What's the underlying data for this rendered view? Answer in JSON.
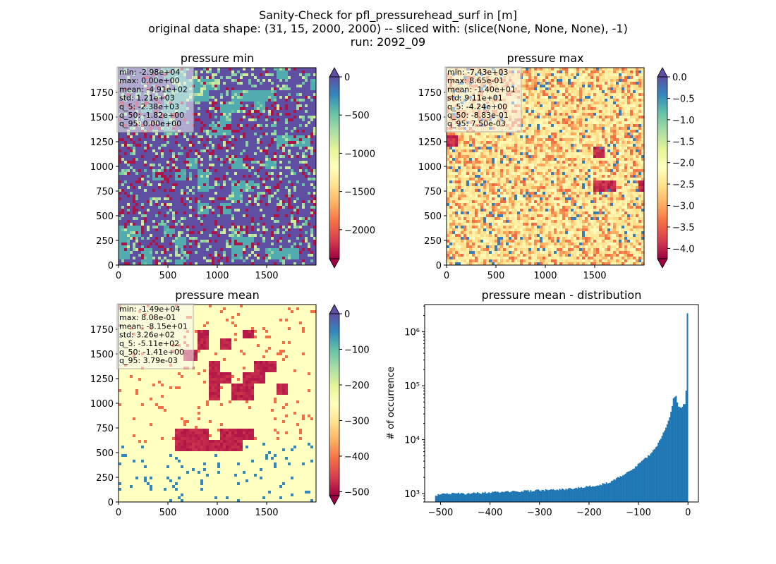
{
  "figure": {
    "title_lines": [
      "Sanity-Check for pfl_pressurehead_surf in [m]",
      "original data shape: (31, 15, 2000, 2000) -- sliced with: (slice(None, None, None), -1)",
      "run: 2092_09"
    ]
  },
  "chart_data": [
    {
      "type": "heatmap",
      "title": "pressure min",
      "x_ticks": [
        "0",
        "500",
        "1000",
        "1500"
      ],
      "y_ticks": [
        "0",
        "250",
        "500",
        "750",
        "1000",
        "1250",
        "1500",
        "1750"
      ],
      "xlim": [
        0,
        2000
      ],
      "ylim": [
        0,
        2000
      ],
      "colormap": "Spectral",
      "colorbar": {
        "ticks": [
          "0",
          "−500",
          "−1000",
          "−1500",
          "−2000"
        ],
        "tick_values": [
          0,
          -500,
          -1000,
          -1500,
          -2000
        ],
        "range": [
          -2380,
          0
        ],
        "extend": "both"
      },
      "stats": [
        "min: -2.98e+04",
        "max: 0.00e+00",
        "mean: -4.91e+02",
        "std: 1.21e+03",
        "q_5: -2.38e+03",
        "q_50: -1.82e+00",
        "q_95: 0.00e+00"
      ]
    },
    {
      "type": "heatmap",
      "title": "pressure max",
      "x_ticks": [
        "0",
        "500",
        "1000",
        "1500"
      ],
      "y_ticks": [
        "0",
        "250",
        "500",
        "750",
        "1000",
        "1250",
        "1500",
        "1750"
      ],
      "xlim": [
        0,
        2000
      ],
      "ylim": [
        0,
        2000
      ],
      "colormap": "Spectral",
      "colorbar": {
        "ticks": [
          "0.0",
          "−0.5",
          "−1.0",
          "−1.5",
          "−2.0",
          "−2.5",
          "−3.0",
          "−3.5",
          "−4.0"
        ],
        "tick_values": [
          0,
          -0.5,
          -1,
          -1.5,
          -2,
          -2.5,
          -3,
          -3.5,
          -4
        ],
        "range": [
          -4.24,
          0
        ],
        "extend": "both"
      },
      "stats": [
        "min: -7.43e+03",
        "max: 8.65e-01",
        "mean: -1.40e+01",
        "std: 9.11e+01",
        "q_5: -4.24e+00",
        "q_50: -8.83e-01",
        "q_95: 7.50e-03"
      ]
    },
    {
      "type": "heatmap",
      "title": "pressure mean",
      "x_ticks": [
        "0",
        "500",
        "1000",
        "1500"
      ],
      "y_ticks": [
        "0",
        "250",
        "500",
        "750",
        "1000",
        "1250",
        "1500",
        "1750"
      ],
      "xlim": [
        0,
        2000
      ],
      "ylim": [
        0,
        2000
      ],
      "colormap": "Spectral",
      "colorbar": {
        "ticks": [
          "0",
          "−100",
          "−200",
          "−300",
          "−400",
          "−500"
        ],
        "tick_values": [
          0,
          -100,
          -200,
          -300,
          -400,
          -500
        ],
        "range": [
          -511,
          0
        ],
        "extend": "both"
      },
      "stats": [
        "min: -1.49e+04",
        "max: 8.08e-01",
        "mean: -8.15e+01",
        "std: 3.26e+02",
        "q_5: -5.11e+02",
        "q_50: -1.41e+00",
        "q_95: 3.79e-03"
      ]
    },
    {
      "type": "bar",
      "title": "pressure mean - distribution",
      "ylabel": "# of occurrence",
      "y_scale": "log",
      "x_ticks": [
        "−500",
        "−400",
        "−300",
        "−200",
        "−100",
        "0"
      ],
      "x_tick_values": [
        -500,
        -400,
        -300,
        -200,
        -100,
        0
      ],
      "y_ticks": [
        "10³",
        "10⁴",
        "10⁵",
        "10⁶"
      ],
      "y_tick_values": [
        1000,
        10000,
        100000,
        1000000
      ],
      "xlim": [
        -532,
        21
      ],
      "ylim": [
        700,
        3200000
      ],
      "bin_range": [
        -511,
        0
      ],
      "bin_count": 200,
      "bin_profile_x": [
        -511,
        -500,
        -450,
        -400,
        -350,
        -300,
        -250,
        -200,
        -180,
        -160,
        -150,
        -140,
        -120,
        -110,
        -100,
        -90,
        -80,
        -70,
        -60,
        -50,
        -45,
        -40,
        -35,
        -30,
        -25,
        -20,
        -15,
        -10,
        -5,
        -2,
        0
      ],
      "bin_profile_y": [
        900,
        1000,
        1000,
        1050,
        1100,
        1150,
        1200,
        1350,
        1450,
        1600,
        1800,
        2000,
        2500,
        2900,
        3500,
        4200,
        5000,
        6300,
        8500,
        13000,
        16000,
        22000,
        30000,
        55000,
        70000,
        42000,
        38000,
        44000,
        48000,
        200000,
        2200000
      ],
      "bar_color": "#1f77b4"
    }
  ]
}
